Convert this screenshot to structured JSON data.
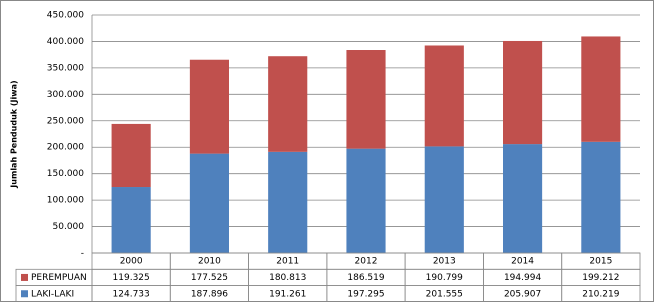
{
  "chart_data": {
    "type": "stacked-bar",
    "y_label": "Jumlah Penduduk (Jiwa)",
    "categories": [
      "2000",
      "2010",
      "2011",
      "2012",
      "2013",
      "2014",
      "2015"
    ],
    "series": [
      {
        "name": "PEREMPUAN",
        "color": "#c0504d",
        "values": [
          119325,
          177525,
          180813,
          186519,
          190799,
          194994,
          199212
        ],
        "value_labels": [
          "119.325",
          "177.525",
          "180.813",
          "186.519",
          "190.799",
          "194.994",
          "199.212"
        ]
      },
      {
        "name": "LAKI-LAKI",
        "color": "#4f81bd",
        "values": [
          124733,
          187896,
          191261,
          197295,
          201555,
          205907,
          210219
        ],
        "value_labels": [
          "124.733",
          "187.896",
          "191.261",
          "197.295",
          "201.555",
          "205.907",
          "210.219"
        ]
      }
    ],
    "ylim": [
      0,
      450000
    ],
    "yticks": [
      {
        "value": 0,
        "label": "-"
      },
      {
        "value": 50000,
        "label": "50.000"
      },
      {
        "value": 100000,
        "label": "100.000"
      },
      {
        "value": 150000,
        "label": "150.000"
      },
      {
        "value": 200000,
        "label": "200.000"
      },
      {
        "value": 250000,
        "label": "250.000"
      },
      {
        "value": 300000,
        "label": "300.000"
      },
      {
        "value": 350000,
        "label": "350.000"
      },
      {
        "value": 400000,
        "label": "400.000"
      },
      {
        "value": 450000,
        "label": "450.000"
      }
    ],
    "grid": true
  }
}
